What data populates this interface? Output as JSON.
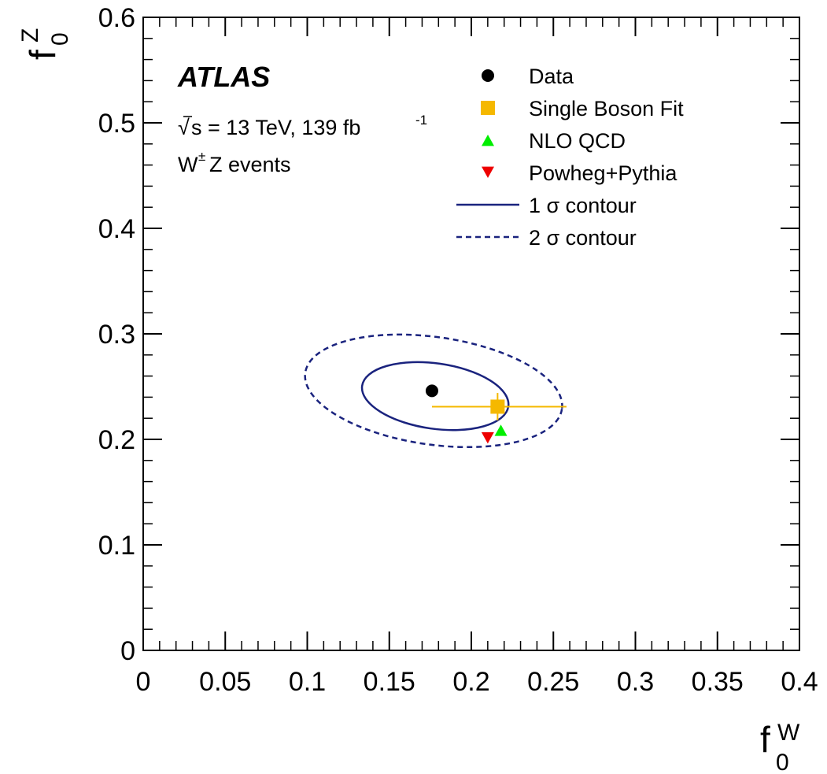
{
  "chart_data": {
    "type": "scatter",
    "x_axis": {
      "label_main": "f",
      "label_sub": "0",
      "label_sup": "W",
      "range": [
        0,
        0.4
      ],
      "ticks": [
        "0",
        "0.05",
        "0.1",
        "0.15",
        "0.2",
        "0.25",
        "0.3",
        "0.35",
        "0.4"
      ]
    },
    "y_axis": {
      "label_main": "f",
      "label_sub": "0",
      "label_sup": "Z",
      "range": [
        0,
        0.6
      ],
      "ticks": [
        "0",
        "0.1",
        "0.2",
        "0.3",
        "0.4",
        "0.5",
        "0.6"
      ]
    },
    "annotations": {
      "experiment": "ATLAS",
      "energy_prefix": "√",
      "energy_main": "s = 13 TeV, 139 fb",
      "energy_sup": "-1",
      "events_main_1": "W",
      "events_sup": "±",
      "events_main_2": "Z events"
    },
    "legend": {
      "position": "top-right",
      "entries": [
        {
          "label": "Data",
          "marker": "circle",
          "color": "#000000"
        },
        {
          "label": "Single Boson Fit",
          "marker": "square",
          "color": "#f5b800"
        },
        {
          "label": "NLO QCD",
          "marker": "triangle-up",
          "color": "#00ee00"
        },
        {
          "label": "Powheg+Pythia",
          "marker": "triangle-down",
          "color": "#ee0000"
        },
        {
          "label": "1 σ contour",
          "marker": "solid-line",
          "color": "#1a237e"
        },
        {
          "label": "2 σ contour",
          "marker": "dashed-line",
          "color": "#1a237e"
        }
      ]
    },
    "points": {
      "data": {
        "x": 0.176,
        "y": 0.246
      },
      "single_boson_fit": {
        "x": 0.216,
        "y": 0.231,
        "x_err": [
          0.176,
          0.258
        ],
        "y_err": [
          0.218,
          0.244
        ]
      },
      "nlo_qcd": {
        "x": 0.218,
        "y": 0.208
      },
      "powheg_pythia": {
        "x": 0.21,
        "y": 0.202
      }
    },
    "contours": {
      "sigma1": {
        "center": [
          0.178,
          0.241
        ],
        "semi_x": 0.045,
        "semi_y": 0.031,
        "rotation_deg": -8
      },
      "sigma2": {
        "center": [
          0.177,
          0.246
        ],
        "semi_x": 0.079,
        "semi_y": 0.051,
        "rotation_deg": -8
      }
    },
    "grid": false
  }
}
